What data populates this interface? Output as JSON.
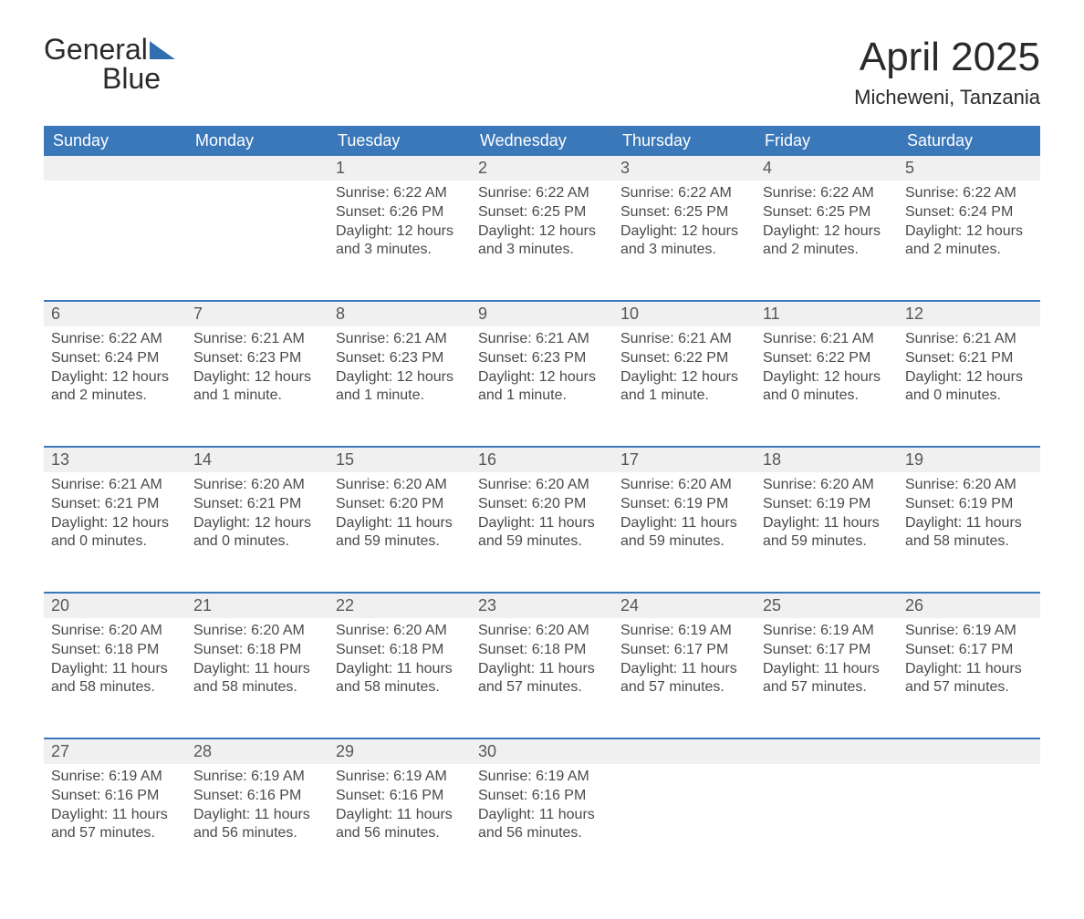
{
  "brand": {
    "part1": "General",
    "part2": "Blue"
  },
  "title": "April 2025",
  "location": "Micheweni, Tanzania",
  "colors": {
    "header_bg": "#3b78b9",
    "header_text": "#ffffff",
    "daynum_bg": "#f0f0f0",
    "row_divider": "#3b78b9",
    "page_bg": "#ffffff",
    "body_text": "#4a4a4a",
    "title_text": "#2a2a2a",
    "logo_blue": "#2f6fb0"
  },
  "fonts": {
    "month_title_pt": 44,
    "location_pt": 22,
    "weekday_pt": 18,
    "daynum_pt": 18,
    "cell_pt": 16
  },
  "weekdays": [
    "Sunday",
    "Monday",
    "Tuesday",
    "Wednesday",
    "Thursday",
    "Friday",
    "Saturday"
  ],
  "weeks": [
    [
      null,
      null,
      {
        "n": "1",
        "sunrise": "6:22 AM",
        "sunset": "6:26 PM",
        "daylight": "12 hours and 3 minutes."
      },
      {
        "n": "2",
        "sunrise": "6:22 AM",
        "sunset": "6:25 PM",
        "daylight": "12 hours and 3 minutes."
      },
      {
        "n": "3",
        "sunrise": "6:22 AM",
        "sunset": "6:25 PM",
        "daylight": "12 hours and 3 minutes."
      },
      {
        "n": "4",
        "sunrise": "6:22 AM",
        "sunset": "6:25 PM",
        "daylight": "12 hours and 2 minutes."
      },
      {
        "n": "5",
        "sunrise": "6:22 AM",
        "sunset": "6:24 PM",
        "daylight": "12 hours and 2 minutes."
      }
    ],
    [
      {
        "n": "6",
        "sunrise": "6:22 AM",
        "sunset": "6:24 PM",
        "daylight": "12 hours and 2 minutes."
      },
      {
        "n": "7",
        "sunrise": "6:21 AM",
        "sunset": "6:23 PM",
        "daylight": "12 hours and 1 minute."
      },
      {
        "n": "8",
        "sunrise": "6:21 AM",
        "sunset": "6:23 PM",
        "daylight": "12 hours and 1 minute."
      },
      {
        "n": "9",
        "sunrise": "6:21 AM",
        "sunset": "6:23 PM",
        "daylight": "12 hours and 1 minute."
      },
      {
        "n": "10",
        "sunrise": "6:21 AM",
        "sunset": "6:22 PM",
        "daylight": "12 hours and 1 minute."
      },
      {
        "n": "11",
        "sunrise": "6:21 AM",
        "sunset": "6:22 PM",
        "daylight": "12 hours and 0 minutes."
      },
      {
        "n": "12",
        "sunrise": "6:21 AM",
        "sunset": "6:21 PM",
        "daylight": "12 hours and 0 minutes."
      }
    ],
    [
      {
        "n": "13",
        "sunrise": "6:21 AM",
        "sunset": "6:21 PM",
        "daylight": "12 hours and 0 minutes."
      },
      {
        "n": "14",
        "sunrise": "6:20 AM",
        "sunset": "6:21 PM",
        "daylight": "12 hours and 0 minutes."
      },
      {
        "n": "15",
        "sunrise": "6:20 AM",
        "sunset": "6:20 PM",
        "daylight": "11 hours and 59 minutes."
      },
      {
        "n": "16",
        "sunrise": "6:20 AM",
        "sunset": "6:20 PM",
        "daylight": "11 hours and 59 minutes."
      },
      {
        "n": "17",
        "sunrise": "6:20 AM",
        "sunset": "6:19 PM",
        "daylight": "11 hours and 59 minutes."
      },
      {
        "n": "18",
        "sunrise": "6:20 AM",
        "sunset": "6:19 PM",
        "daylight": "11 hours and 59 minutes."
      },
      {
        "n": "19",
        "sunrise": "6:20 AM",
        "sunset": "6:19 PM",
        "daylight": "11 hours and 58 minutes."
      }
    ],
    [
      {
        "n": "20",
        "sunrise": "6:20 AM",
        "sunset": "6:18 PM",
        "daylight": "11 hours and 58 minutes."
      },
      {
        "n": "21",
        "sunrise": "6:20 AM",
        "sunset": "6:18 PM",
        "daylight": "11 hours and 58 minutes."
      },
      {
        "n": "22",
        "sunrise": "6:20 AM",
        "sunset": "6:18 PM",
        "daylight": "11 hours and 58 minutes."
      },
      {
        "n": "23",
        "sunrise": "6:20 AM",
        "sunset": "6:18 PM",
        "daylight": "11 hours and 57 minutes."
      },
      {
        "n": "24",
        "sunrise": "6:19 AM",
        "sunset": "6:17 PM",
        "daylight": "11 hours and 57 minutes."
      },
      {
        "n": "25",
        "sunrise": "6:19 AM",
        "sunset": "6:17 PM",
        "daylight": "11 hours and 57 minutes."
      },
      {
        "n": "26",
        "sunrise": "6:19 AM",
        "sunset": "6:17 PM",
        "daylight": "11 hours and 57 minutes."
      }
    ],
    [
      {
        "n": "27",
        "sunrise": "6:19 AM",
        "sunset": "6:16 PM",
        "daylight": "11 hours and 57 minutes."
      },
      {
        "n": "28",
        "sunrise": "6:19 AM",
        "sunset": "6:16 PM",
        "daylight": "11 hours and 56 minutes."
      },
      {
        "n": "29",
        "sunrise": "6:19 AM",
        "sunset": "6:16 PM",
        "daylight": "11 hours and 56 minutes."
      },
      {
        "n": "30",
        "sunrise": "6:19 AM",
        "sunset": "6:16 PM",
        "daylight": "11 hours and 56 minutes."
      },
      null,
      null,
      null
    ]
  ],
  "labels": {
    "sunrise": "Sunrise: ",
    "sunset": "Sunset: ",
    "daylight": "Daylight: "
  }
}
